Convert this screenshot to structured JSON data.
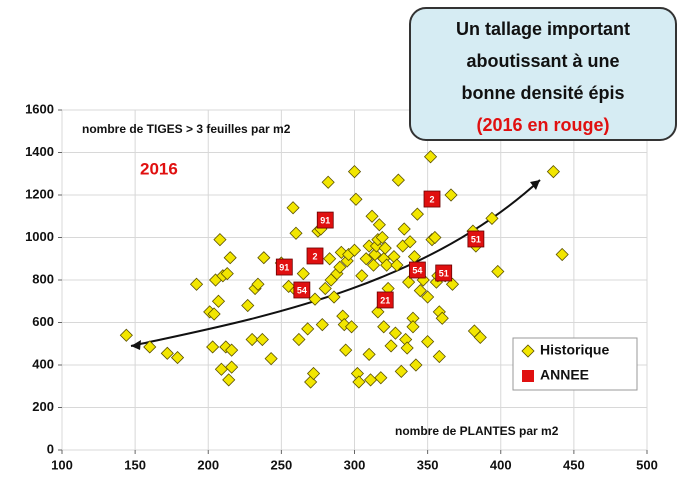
{
  "chart_data": {
    "type": "scatter",
    "callout": [
      "Un tallage important",
      "aboutissant à une",
      "bonne densité épis",
      "(2016 en rouge)"
    ],
    "y_label": "nombre de TIGES > 3 feuilles par m2",
    "x_label": "nombre de PLANTES par m2",
    "annotation": "2016",
    "xlim": [
      100,
      500
    ],
    "xticks": [
      100,
      150,
      200,
      250,
      300,
      350,
      400,
      450,
      500
    ],
    "ylim": [
      0,
      1600
    ],
    "yticks": [
      0,
      200,
      400,
      600,
      800,
      1000,
      1200,
      1400,
      1600
    ],
    "grid": true,
    "legend": "lower right",
    "series": [
      {
        "name": "Historique",
        "color": "#f2e600",
        "x": [
          144,
          160,
          172,
          179,
          192,
          201,
          204,
          207,
          208,
          205,
          210,
          213,
          215,
          212,
          203,
          209,
          214,
          216,
          216,
          227,
          230,
          232,
          234,
          237,
          238,
          243,
          250,
          255,
          258,
          260,
          260,
          262,
          265,
          268,
          270,
          272,
          273,
          275,
          277,
          278,
          280,
          282,
          283,
          284,
          286,
          288,
          290,
          291,
          292,
          293,
          294,
          295,
          296,
          298,
          300,
          300,
          301,
          302,
          303,
          305,
          308,
          310,
          310,
          311,
          312,
          313,
          314,
          315,
          316,
          316,
          317,
          318,
          319,
          320,
          320,
          321,
          322,
          323,
          325,
          327,
          328,
          329,
          330,
          332,
          333,
          334,
          335,
          336,
          337,
          338,
          340,
          340,
          341,
          342,
          343,
          345,
          347,
          350,
          350,
          352,
          353,
          355,
          356,
          357,
          358,
          358,
          360,
          362,
          366,
          367,
          381,
          382,
          383,
          386,
          394,
          398,
          436,
          442
        ],
        "values": [
          540,
          485,
          455,
          435,
          780,
          650,
          640,
          700,
          990,
          800,
          820,
          830,
          905,
          485,
          485,
          380,
          330,
          390,
          470,
          680,
          520,
          760,
          780,
          520,
          905,
          430,
          880,
          770,
          1140,
          1020,
          750,
          520,
          830,
          570,
          320,
          360,
          710,
          1030,
          1040,
          590,
          760,
          1260,
          900,
          800,
          720,
          830,
          860,
          930,
          630,
          590,
          470,
          890,
          920,
          580,
          1310,
          940,
          1180,
          360,
          320,
          820,
          900,
          960,
          450,
          330,
          1100,
          870,
          920,
          960,
          990,
          650,
          1060,
          340,
          1000,
          580,
          900,
          950,
          870,
          760,
          490,
          910,
          550,
          870,
          1270,
          370,
          960,
          1040,
          520,
          480,
          790,
          980,
          620,
          580,
          910,
          400,
          1110,
          750,
          800,
          510,
          720,
          1380,
          990,
          1000,
          790,
          820,
          650,
          440,
          620,
          820,
          1200,
          780,
          1030,
          560,
          960,
          530,
          1090,
          840,
          1310,
          920
        ]
      },
      {
        "name": "ANNEE",
        "color": "#e01010",
        "x": [
          280,
          353,
          273,
          252,
          264,
          321,
          343,
          383,
          361
        ],
        "values": [
          1082,
          1181,
          913,
          861,
          753,
          706,
          847,
          993,
          833
        ],
        "labels": [
          "91",
          "2",
          "2",
          "91",
          "54",
          "21",
          "54",
          "51",
          "51"
        ]
      }
    ]
  }
}
